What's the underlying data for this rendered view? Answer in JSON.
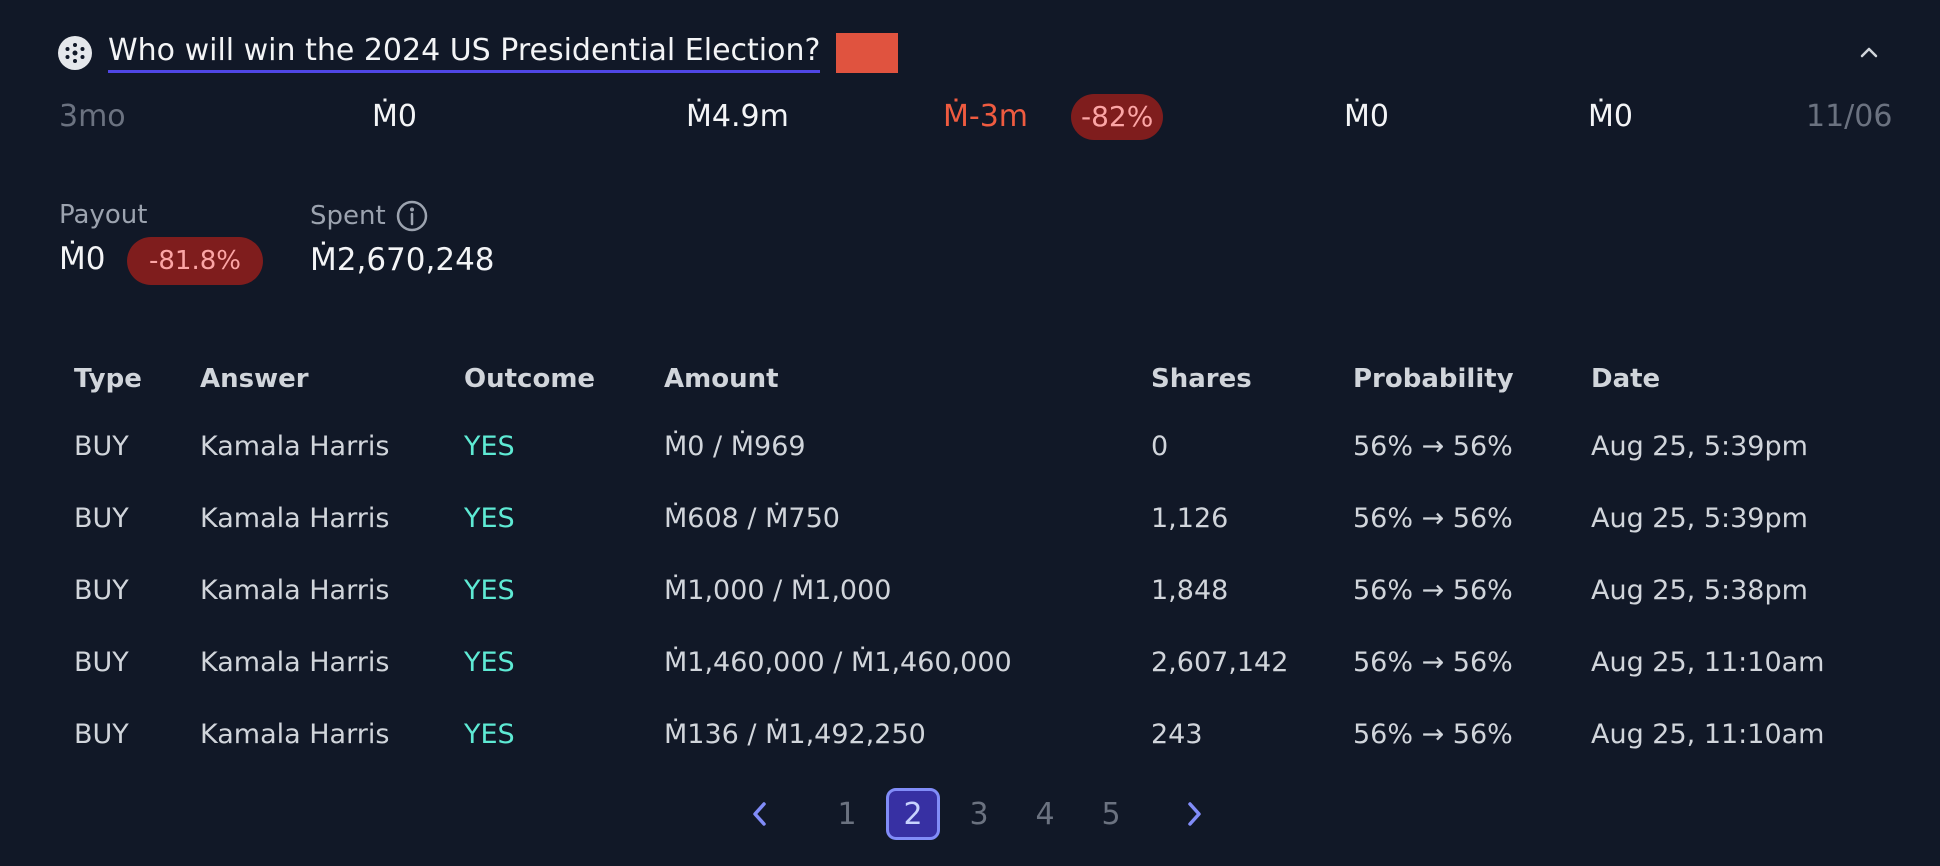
{
  "market": {
    "title": "Who will win the 2024 US Presidential Election?",
    "swatch_color": "#e0533f",
    "icon": "market-icon",
    "collapse_icon": "chevron-up-icon"
  },
  "stats": {
    "age": "3mo",
    "v1": "Ṁ0",
    "v2": "Ṁ4.9m",
    "profit": "Ṁ-3m",
    "profit_pct": "-82%",
    "v3": "Ṁ0",
    "v4": "Ṁ0",
    "date": "11/06"
  },
  "summary": {
    "payout_label": "Payout",
    "payout_value": "Ṁ0",
    "payout_pct": "-81.8%",
    "spent_label": "Spent",
    "spent_value": "Ṁ2,670,248",
    "info_icon": "info-icon"
  },
  "table": {
    "headers": [
      "Type",
      "Answer",
      "Outcome",
      "Amount",
      "Shares",
      "Probability",
      "Date"
    ],
    "rows": [
      [
        "BUY",
        "Kamala Harris",
        "YES",
        "Ṁ0 / Ṁ969",
        "0",
        "56% → 56%",
        "Aug 25, 5:39pm"
      ],
      [
        "BUY",
        "Kamala Harris",
        "YES",
        "Ṁ608 / Ṁ750",
        "1,126",
        "56% → 56%",
        "Aug 25, 5:39pm"
      ],
      [
        "BUY",
        "Kamala Harris",
        "YES",
        "Ṁ1,000 / Ṁ1,000",
        "1,848",
        "56% → 56%",
        "Aug 25, 5:38pm"
      ],
      [
        "BUY",
        "Kamala Harris",
        "YES",
        "Ṁ1,460,000 / Ṁ1,460,000",
        "2,607,142",
        "56% → 56%",
        "Aug 25, 11:10am"
      ],
      [
        "BUY",
        "Kamala Harris",
        "YES",
        "Ṁ136 / Ṁ1,492,250",
        "243",
        "56% → 56%",
        "Aug 25, 11:10am"
      ]
    ]
  },
  "pagination": {
    "pages": [
      "1",
      "2",
      "3",
      "4",
      "5"
    ],
    "current": "2",
    "prev_icon": "chevron-left-icon",
    "next_icon": "chevron-right-icon"
  }
}
